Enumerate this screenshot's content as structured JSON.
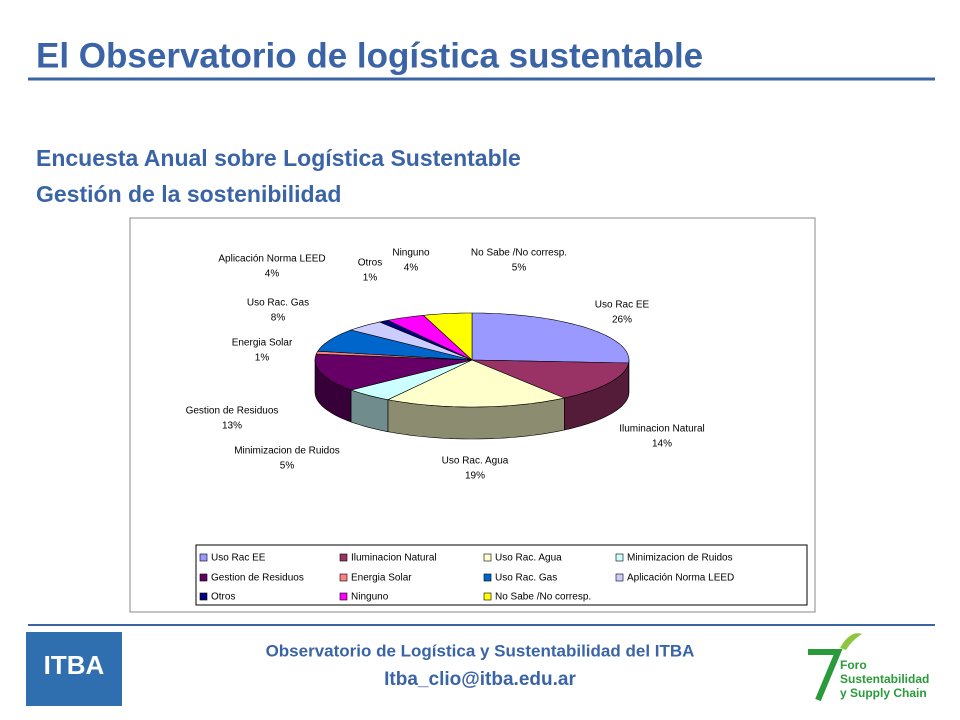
{
  "header": {
    "title": "El Observatorio de logística sustentable",
    "subtitle": [
      "Encuesta Anual sobre Logística Sustentable",
      "Gestión de la sostenibilidad"
    ]
  },
  "chart_data": {
    "type": "pie3d",
    "categories": [
      "Uso Rac EE",
      "Iluminacion Natural",
      "Uso Rac. Agua",
      "Minimizacion de Ruidos",
      "Gestion de Residuos",
      "Energia Solar",
      "Uso Rac. Gas",
      "Aplicación Norma LEED",
      "Otros",
      "Ninguno",
      "No Sabe /No corresp."
    ],
    "values": [
      26,
      14,
      19,
      5,
      13,
      1,
      8,
      4,
      1,
      4,
      5
    ],
    "value_labels": [
      "26%",
      "14%",
      "19%",
      "5%",
      "13%",
      "1%",
      "8%",
      "4%",
      "1%",
      "4%",
      "5%"
    ],
    "colors": [
      "#9999ff",
      "#993366",
      "#ffffcc",
      "#ccffff",
      "#660066",
      "#ff8080",
      "#0066cc",
      "#ccccff",
      "#000080",
      "#ff00ff",
      "#ffff00"
    ],
    "legend": true
  },
  "footer": {
    "line1": "Observatorio de Logística y Sustentabilidad del ITBA",
    "line2": "Itba_clio@itba.edu.ar",
    "logo_left": "ITBA",
    "logo_right": [
      "Foro",
      "Sustentabilidad",
      "y Supply Chain"
    ]
  }
}
